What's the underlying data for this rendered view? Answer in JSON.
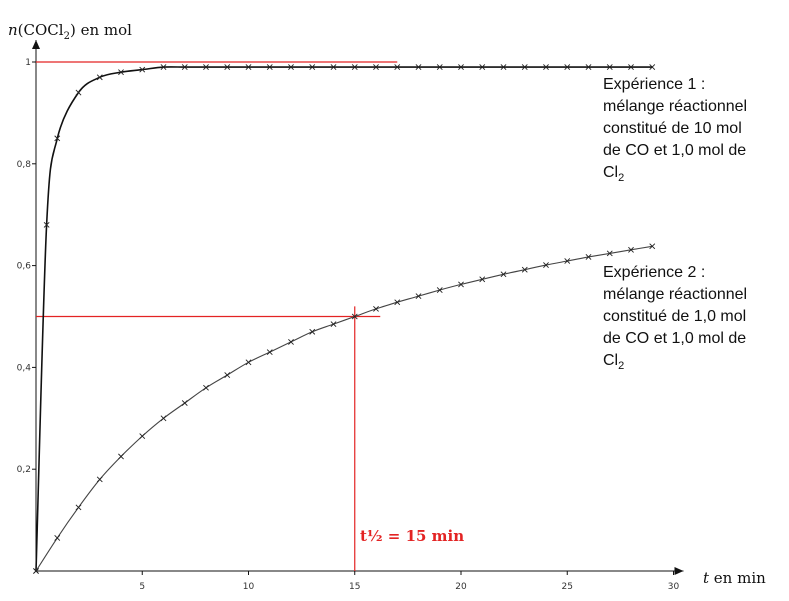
{
  "chart_data": {
    "type": "line",
    "title": "",
    "ylabel": "n(COCl2) en mol",
    "ylabel_parts": {
      "italic": "n",
      "open": "(COCl",
      "sub": "2",
      "close": ") en mol"
    },
    "xlabel": "t en min",
    "xlabel_parts": {
      "italic": "t",
      "rest": " en min"
    },
    "xlim": [
      0,
      30
    ],
    "ylim": [
      0,
      1
    ],
    "x_ticks": [
      5,
      10,
      15,
      20,
      25,
      30
    ],
    "x_tick_labels": [
      "5",
      "10",
      "15",
      "20",
      "25",
      "30"
    ],
    "y_ticks": [
      0.2,
      0.4,
      0.6,
      0.8,
      1
    ],
    "y_tick_labels": [
      "0,2",
      "0,4",
      "0,6",
      "0,8",
      "1"
    ],
    "grid": false,
    "series": [
      {
        "x": [
          0,
          0.5,
          1,
          2,
          3,
          4,
          5,
          6,
          7,
          8,
          9,
          10,
          11,
          12,
          13,
          14,
          15,
          16,
          17,
          18,
          19,
          20,
          21,
          22,
          23,
          24,
          25,
          26,
          27,
          28,
          29
        ],
        "values": [
          0,
          0.68,
          0.85,
          0.94,
          0.97,
          0.98,
          0.985,
          0.99,
          0.99,
          0.99,
          0.99,
          0.99,
          0.99,
          0.99,
          0.99,
          0.99,
          0.99,
          0.99,
          0.99,
          0.99,
          0.99,
          0.99,
          0.99,
          0.99,
          0.99,
          0.99,
          0.99,
          0.99,
          0.99,
          0.99,
          0.99
        ]
      },
      {
        "x": [
          0,
          1,
          2,
          3,
          4,
          5,
          6,
          7,
          8,
          9,
          10,
          11,
          12,
          13,
          14,
          15,
          16,
          17,
          18,
          19,
          20,
          21,
          22,
          23,
          24,
          25,
          26,
          27,
          28,
          29
        ],
        "values": [
          0,
          0.065,
          0.125,
          0.18,
          0.225,
          0.265,
          0.3,
          0.33,
          0.36,
          0.385,
          0.41,
          0.43,
          0.45,
          0.47,
          0.485,
          0.5,
          0.515,
          0.528,
          0.54,
          0.552,
          0.563,
          0.573,
          0.583,
          0.592,
          0.601,
          0.609,
          0.617,
          0.624,
          0.631,
          0.638
        ]
      }
    ],
    "annotations": [
      {
        "lines": [
          "Expérience 1 :",
          "mélange réactionnel",
          "constitué de 10 mol",
          "de CO et 1,0 mol de"
        ],
        "last_line": {
          "main": "Cl",
          "sub": "2"
        }
      },
      {
        "lines": [
          "Expérience 2 :",
          "mélange réactionnel",
          "constitué de 1,0 mol",
          "de CO et 1,0 mol de"
        ],
        "last_line": {
          "main": "Cl",
          "sub": "2"
        }
      }
    ],
    "reference_lines": {
      "color": "#e32323",
      "y_one": {
        "y": 1,
        "x_end": 17
      },
      "half": {
        "y": 0.5,
        "x": 15,
        "x_end": 16.2
      },
      "label": "t½ = 15 min"
    }
  }
}
